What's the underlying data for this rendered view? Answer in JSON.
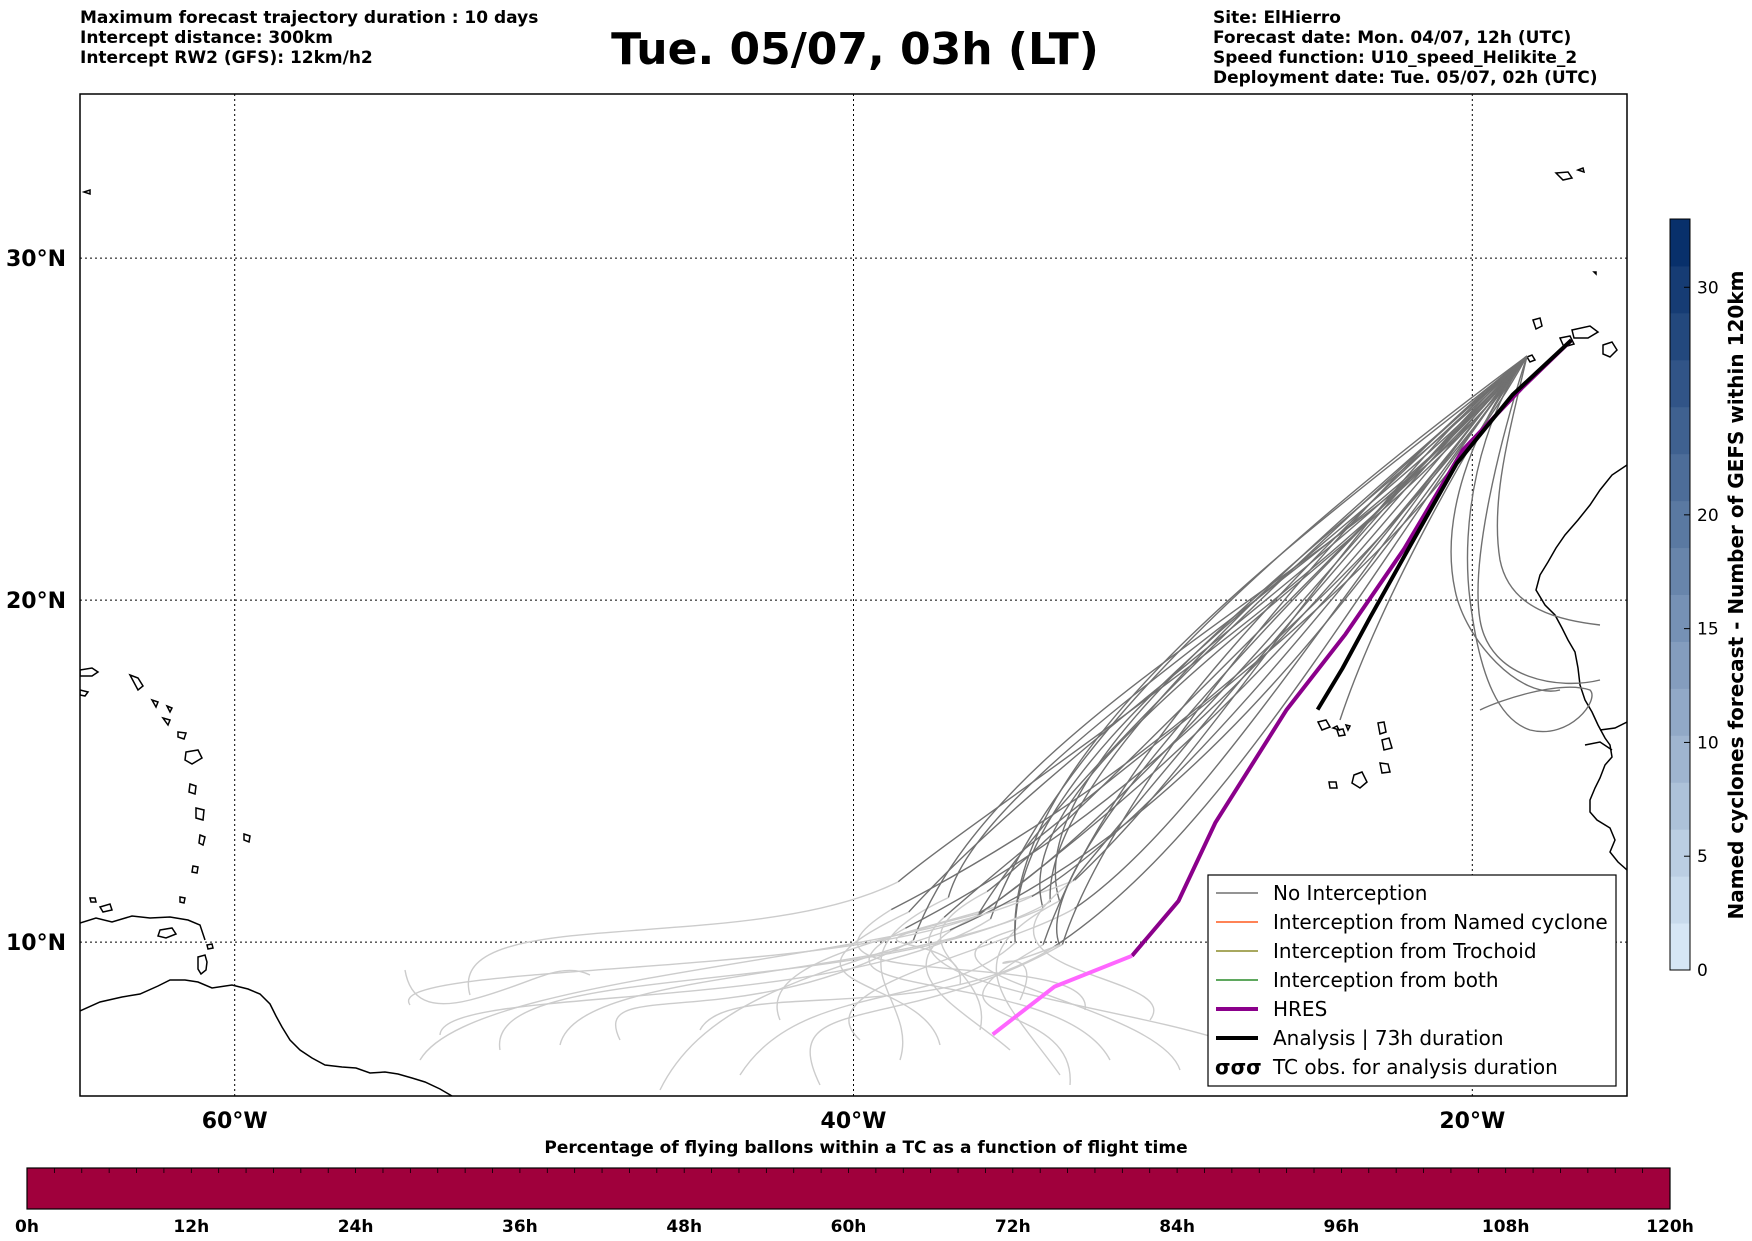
{
  "header_left": [
    "Maximum forecast trajectory duration : 10 days",
    "Intercept distance: 300km",
    "Intercept RW2 (GFS):  12km/h2"
  ],
  "title": "Tue. 05/07, 03h (LT)",
  "header_right": [
    "Site: ElHierro",
    "Forecast date: Mon. 04/07, 12h (UTC)",
    "Speed function: U10_speed_Helikite_2",
    "Deployment date: Tue. 05/07, 02h (UTC)"
  ],
  "map": {
    "lon_range": [
      -65,
      -15
    ],
    "lat_range": [
      5.5,
      34.8
    ],
    "lon_ticks": [
      {
        "value": -60,
        "label": "60°W"
      },
      {
        "value": -40,
        "label": "40°W"
      },
      {
        "value": -20,
        "label": "20°W"
      }
    ],
    "lat_ticks": [
      {
        "value": 30,
        "label": "30°N"
      },
      {
        "value": 20,
        "label": "20°N"
      },
      {
        "value": 10,
        "label": "10°N"
      }
    ],
    "grid": true,
    "colors": {
      "no_interception": "#707070",
      "tail": "#cccccc",
      "named_cyclone": "#ff5a1e",
      "trochoid": "#8b8b2a",
      "both": "#2a8b2a",
      "hres": "#8b008b",
      "hres_tail": "#ff66ff",
      "analysis": "#000000"
    }
  },
  "legend": {
    "placement": "lower-right",
    "items": [
      {
        "label": "No Interception",
        "color": "#707070",
        "style": "thin"
      },
      {
        "label": "Interception from Named cyclone",
        "color": "#ff5a1e",
        "style": "thin"
      },
      {
        "label": "Interception from Trochoid",
        "color": "#8b8b2a",
        "style": "thin"
      },
      {
        "label": "Interception from both",
        "color": "#2a8b2a",
        "style": "thin"
      },
      {
        "label": "HRES",
        "color": "#8b008b",
        "style": "thick"
      },
      {
        "label": "Analysis | 73h duration",
        "color": "#000000",
        "style": "thick"
      },
      {
        "label": "TC obs. for analysis duration",
        "color": "#000000",
        "style": "symbol"
      }
    ]
  },
  "colorbar": {
    "title": "Named cyclones forecast - Number of GEFS within 120km",
    "range": [
      0,
      33
    ],
    "ticks": [
      0,
      5,
      10,
      15,
      20,
      30
    ],
    "color_low": "#d6e6f5",
    "color_high": "#08306b"
  },
  "tc_bar": {
    "title": "Percentage of flying ballons within a TC as a function of flight time",
    "color": "#a0003c",
    "ticks": [
      "0h",
      "12h",
      "24h",
      "36h",
      "48h",
      "60h",
      "72h",
      "84h",
      "96h",
      "108h",
      "120h"
    ]
  },
  "chart_data": {
    "type": "line",
    "series": [
      {
        "name": "HRES",
        "points": [
          [
            -16.8,
            27.6
          ],
          [
            -18.4,
            26.2
          ],
          [
            -20.3,
            24.4
          ],
          [
            -22.2,
            21.5
          ],
          [
            -24.1,
            19.0
          ],
          [
            -26.0,
            16.8
          ],
          [
            -28.3,
            13.5
          ],
          [
            -29.5,
            11.2
          ],
          [
            -31.0,
            9.6
          ],
          [
            -33.5,
            8.7
          ],
          [
            -35.5,
            7.3
          ]
        ]
      },
      {
        "name": "Analysis | 73h duration",
        "points": [
          [
            -16.8,
            27.6
          ],
          [
            -18.7,
            26.0
          ],
          [
            -20.5,
            24.0
          ],
          [
            -22.0,
            21.6
          ],
          [
            -23.3,
            19.5
          ],
          [
            -24.2,
            18.0
          ],
          [
            -25.0,
            16.8
          ]
        ]
      }
    ]
  }
}
